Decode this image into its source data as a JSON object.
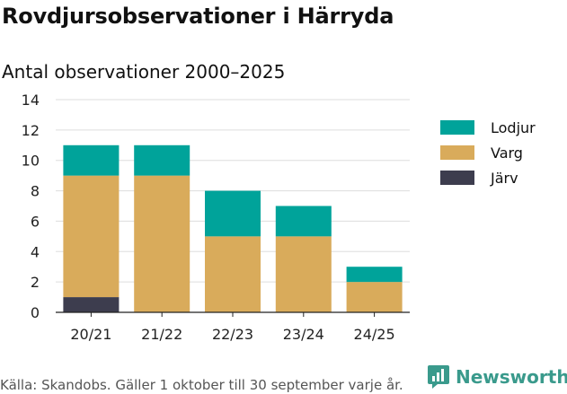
{
  "title": "Rovdjursobservationer i Härryda",
  "subtitle": "Antal observationer 2000–2025",
  "source": "Källa: Skandobs. Gäller 1 oktober till 30 september varje år.",
  "brand": "Newsworthy",
  "chart_data": {
    "type": "bar",
    "stacked": true,
    "title": "Antal observationer 2000–2025",
    "xlabel": "",
    "ylabel": "",
    "categories": [
      "20/21",
      "21/22",
      "22/23",
      "23/24",
      "24/25"
    ],
    "ylim": [
      0,
      14
    ],
    "yticks": [
      0,
      2,
      4,
      6,
      8,
      10,
      12,
      14
    ],
    "grid": true,
    "legend_position": "right",
    "series": [
      {
        "name": "Järv",
        "color": "#3d3d4e",
        "values": [
          1,
          0,
          0,
          0,
          0
        ]
      },
      {
        "name": "Varg",
        "color": "#d9ab5b",
        "values": [
          8,
          9,
          5,
          5,
          2
        ]
      },
      {
        "name": "Lodjur",
        "color": "#00a39a",
        "values": [
          2,
          2,
          3,
          2,
          1
        ]
      }
    ],
    "legend_order": [
      "Lodjur",
      "Varg",
      "Järv"
    ]
  }
}
